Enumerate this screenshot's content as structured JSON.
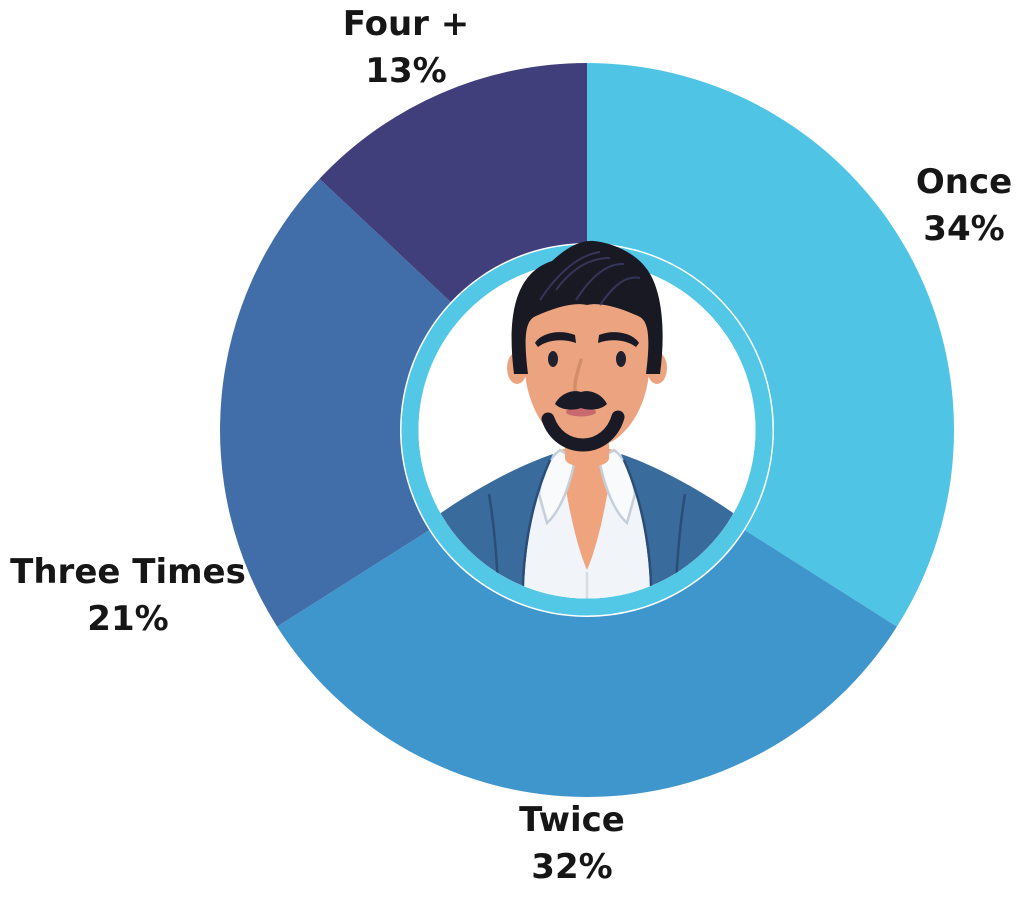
{
  "chart_data": {
    "type": "pie",
    "subtype": "donut",
    "title": "",
    "direction": "clockwise",
    "start_angle_deg": 0,
    "grid": false,
    "legend_position": "labels-around-slices",
    "segments": [
      {
        "label": "Once",
        "value": 34,
        "percent_label": "34%",
        "color": "#4FC4E4",
        "label_position": "right"
      },
      {
        "label": "Twice",
        "value": 32,
        "percent_label": "32%",
        "color": "#3F96CC",
        "label_position": "bottom"
      },
      {
        "label": "Three Times",
        "value": 21,
        "percent_label": "21%",
        "color": "#416EA8",
        "label_position": "left"
      },
      {
        "label": "Four +",
        "value": 13,
        "percent_label": "13%",
        "color": "#403E7B",
        "label_position": "top-left"
      }
    ],
    "text_color": "#161616",
    "center": {
      "type": "illustration",
      "name": "man-avatar",
      "ring_color": "#52C7E6",
      "background": "#FFFFFF"
    }
  },
  "avatar": {
    "hair": "#191924",
    "hair_streak": "#3B3B63",
    "skin": "#ECA480",
    "chest_skin": "#EFA47E",
    "facial_hair": "#1A1A26",
    "eye": "#20202E",
    "lips": "#C8696E",
    "nose_shade": "#D28E67",
    "shirt": "#F1F4F8",
    "collar_fill": "#F8FAFC",
    "collar_line": "#C6CFD9",
    "placket_line": "#D6DDE4",
    "jacket": "#3A6B9D",
    "lapel_line": "#2B4E78"
  }
}
